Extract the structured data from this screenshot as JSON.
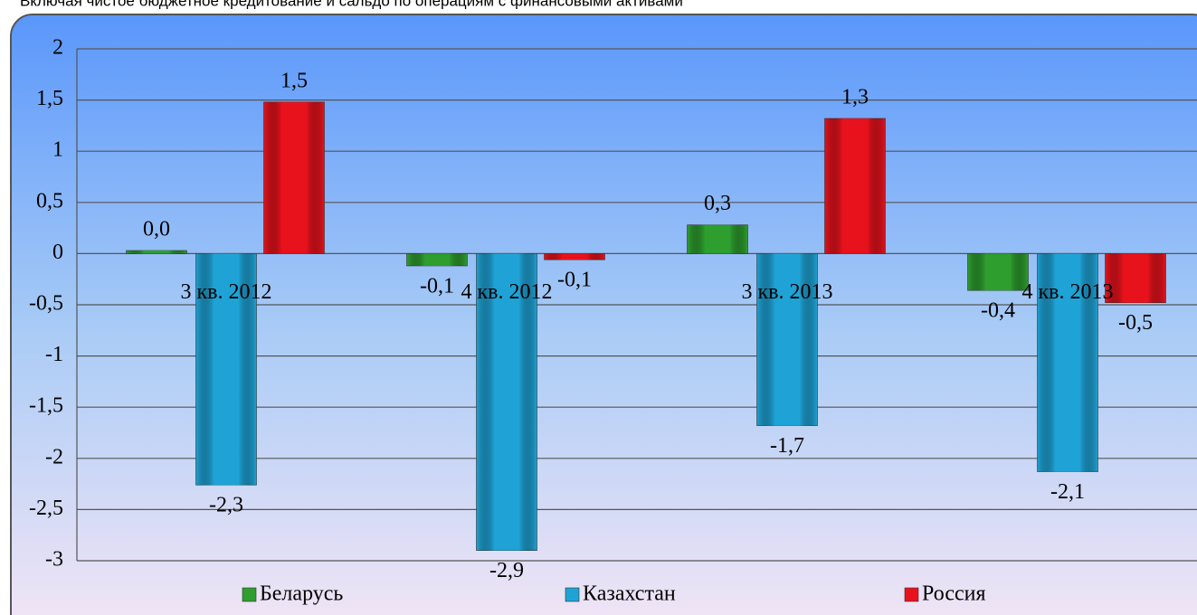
{
  "chart_data": {
    "type": "bar",
    "subtitle": "Включая чистое бюджетное кредитование и сальдо по операциям с финансовыми активами",
    "categories": [
      "3 кв. 2012",
      "4 кв. 2012",
      "3 кв. 2013",
      "4 кв. 2013"
    ],
    "series": [
      {
        "name": "Беларусь",
        "color": "#2e9e2e",
        "values": [
          0.03,
          -0.12,
          0.28,
          -0.36
        ],
        "value_labels": [
          "0,0",
          "-0,1",
          "0,3",
          "-0,4"
        ]
      },
      {
        "name": "Казахстан",
        "color": "#1fa3d6",
        "values": [
          -2.26,
          -2.9,
          -1.68,
          -2.13
        ],
        "value_labels": [
          "-2,3",
          "-2,9",
          "-1,7",
          "-2,1"
        ]
      },
      {
        "name": "Россия",
        "color": "#e8121c",
        "values": [
          1.48,
          -0.06,
          1.32,
          -0.48
        ],
        "value_labels": [
          "1,5",
          "-0,1",
          "1,3",
          "-0,5"
        ]
      }
    ],
    "ylim": [
      -3,
      2
    ],
    "yticks": [
      -3,
      {
        "value": -2.5,
        "label": "-2,5"
      },
      -2,
      {
        "value": -1.5,
        "label": "-1,5"
      },
      -1,
      {
        "value": -0.5,
        "label": "-0,5"
      },
      0,
      {
        "value": 0.5,
        "label": "0,5"
      },
      1,
      {
        "value": 1.5,
        "label": "1,5"
      },
      2
    ],
    "grid": true,
    "legend": "bottom"
  }
}
